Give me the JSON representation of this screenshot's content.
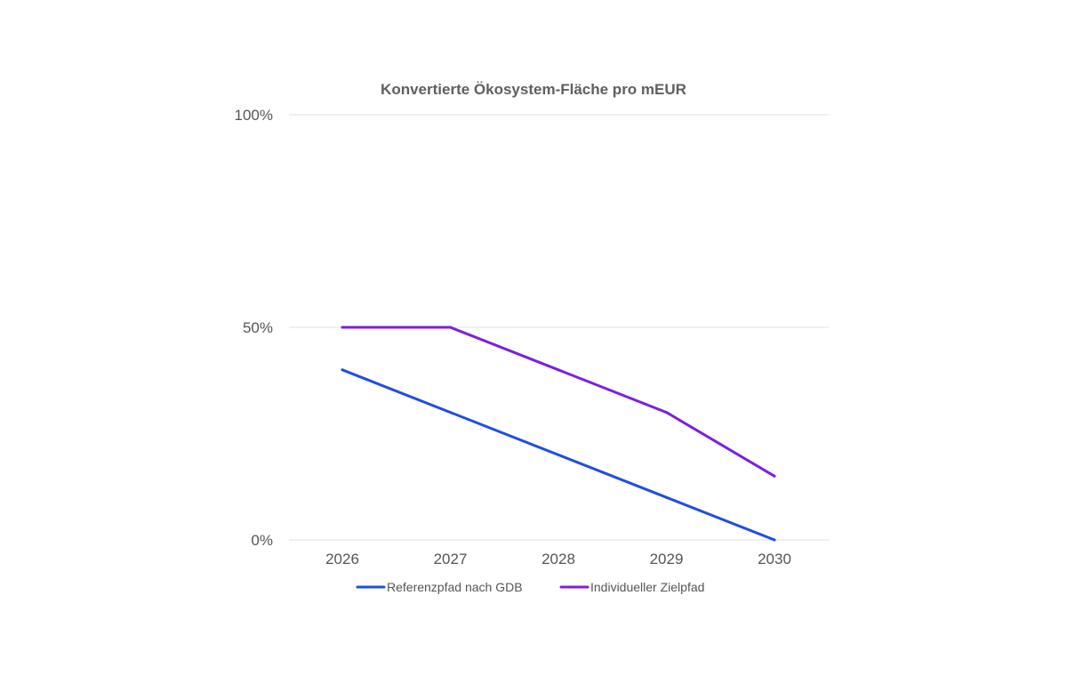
{
  "chart_data": {
    "type": "line",
    "title": "Konvertierte Ökosystem-Fläche pro mEUR",
    "xlabel": "",
    "ylabel": "",
    "categories": [
      "2026",
      "2027",
      "2028",
      "2029",
      "2030"
    ],
    "y_ticks": [
      0,
      50,
      100
    ],
    "y_tick_labels": [
      "0%",
      "50%",
      "100%"
    ],
    "ylim": [
      0,
      100
    ],
    "grid": true,
    "legend_position": "bottom",
    "series": [
      {
        "name": "Referenzpfad nach GDB",
        "color": "#1f4ee0",
        "values": [
          40,
          30,
          20,
          10,
          0
        ]
      },
      {
        "name": "Individueller Zielpfad",
        "color": "#7b1fe0",
        "values": [
          50,
          50,
          40,
          30,
          15
        ]
      }
    ]
  }
}
